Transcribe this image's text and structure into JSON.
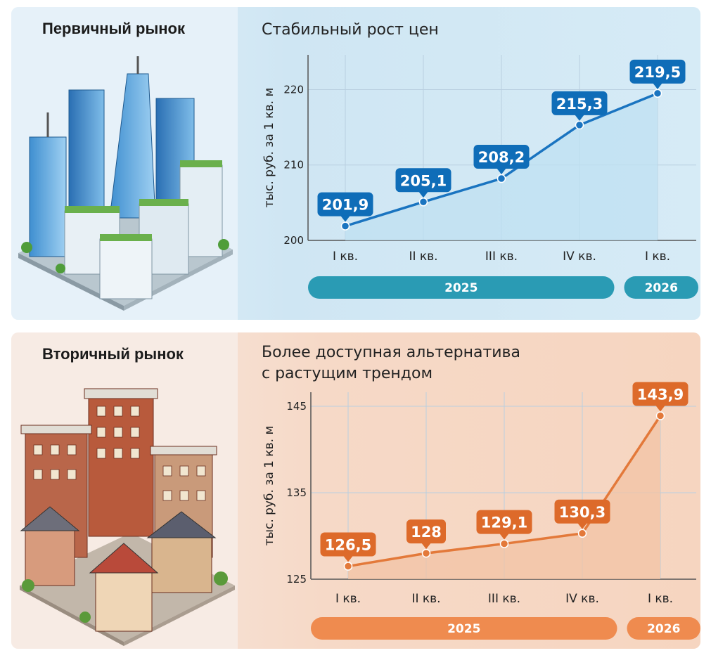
{
  "primary": {
    "market_title": "Первичный рынок",
    "chart_title": "Стабильный рост цен",
    "colors": {
      "line": "#1a74c0",
      "label": "#0f6db8",
      "year": "#2a9bb4",
      "fill": "#bfe0f2"
    }
  },
  "secondary": {
    "market_title": "Вторичный рынок",
    "chart_title_line1": "Более доступная альтернатива",
    "chart_title_line2": "с растущим трендом",
    "colors": {
      "line": "#e3793a",
      "label": "#dd6a2a",
      "year": "#ef8b4f",
      "fill": "#f2c3a4"
    }
  },
  "chart_data": [
    {
      "type": "line",
      "title": "Стабильный рост цен",
      "ylabel": "тыс. руб. за 1 кв. м",
      "categories": [
        "I кв.",
        "II кв.",
        "III кв.",
        "IV кв.",
        "I кв."
      ],
      "values": [
        201.9,
        205.1,
        208.2,
        215.3,
        219.5
      ],
      "value_labels": [
        "201,9",
        "205,1",
        "208,2",
        "215,3",
        "219,5"
      ],
      "ylim": [
        200,
        222
      ],
      "yticks": [
        200,
        210,
        220
      ],
      "ytick_labels": [
        "200",
        "210",
        "220"
      ],
      "year_groups": [
        {
          "label": "2025",
          "span": 4
        },
        {
          "label": "2026",
          "span": 1
        }
      ],
      "grid": true
    },
    {
      "type": "line",
      "title": "Более доступная альтернатива с растущим трендом",
      "ylabel": "тыс. руб. за 1 кв. м",
      "categories": [
        "I кв.",
        "II кв.",
        "III кв.",
        "IV кв.",
        "I кв."
      ],
      "values": [
        126.5,
        128,
        129.1,
        130.3,
        143.9
      ],
      "value_labels": [
        "126,5",
        "128",
        "129,1",
        "130,3",
        "143,9"
      ],
      "ylim": [
        125,
        145
      ],
      "yticks": [
        125,
        135,
        145
      ],
      "ytick_labels": [
        "125",
        "135",
        "145"
      ],
      "year_groups": [
        {
          "label": "2025",
          "span": 4
        },
        {
          "label": "2026",
          "span": 1
        }
      ],
      "grid": true
    }
  ]
}
